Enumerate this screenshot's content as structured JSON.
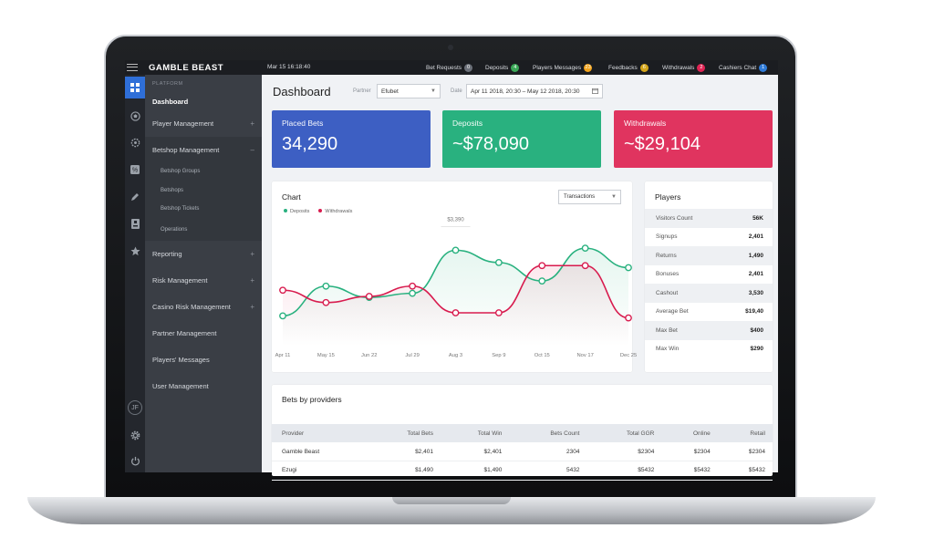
{
  "app": {
    "logo": "GAMBLE BEAST"
  },
  "topbar": {
    "time": "Mar 15 16:18:40",
    "items": [
      {
        "label": "Bet Requests",
        "count": "0",
        "color": "#6b7079"
      },
      {
        "label": "Deposits",
        "count": "4",
        "color": "#3aa757"
      },
      {
        "label": "Players Messages",
        "count": "23",
        "color": "#f2a31b"
      },
      {
        "label": "Feedbacks",
        "count": "6",
        "color": "#d4a51a"
      },
      {
        "label": "Withdrawals",
        "count": "2",
        "color": "#e02454"
      },
      {
        "label": "Cashiers Chat",
        "count": "1",
        "color": "#2f7bd8"
      }
    ]
  },
  "rail": {
    "icons": [
      "dashboard-icon",
      "soccer-ball-icon",
      "settings-cog-icon",
      "percent-icon",
      "pencil-icon",
      "id-card-icon",
      "star-icon"
    ],
    "avatar": "JF",
    "bottom_icons": [
      "gear-icon",
      "power-icon"
    ]
  },
  "sidebar": {
    "section": "PLATFORM",
    "active": "Dashboard",
    "items": [
      {
        "label": "Player Management",
        "plus": "+"
      },
      {
        "label": "Betshop Management",
        "plus": "–"
      },
      {
        "label": "Reporting",
        "plus": "+"
      },
      {
        "label": "Risk Management",
        "plus": "+"
      },
      {
        "label": "Casino Risk Management",
        "plus": "+"
      },
      {
        "label": "Partner Management",
        "plus": ""
      },
      {
        "label": "Players' Messages",
        "plus": ""
      },
      {
        "label": "User Management",
        "plus": ""
      }
    ],
    "betshop_sub": [
      "Betshop Groups",
      "Betshops",
      "Betshop Tickets",
      "Operations"
    ]
  },
  "header": {
    "title": "Dashboard",
    "partner_label": "Partner",
    "partner_value": "Efubet",
    "date_label": "Date",
    "date_value": "Apr 11 2018, 20:30 – May 12 2018, 20:30"
  },
  "kpis": [
    {
      "label": "Placed Bets",
      "value": "34,290",
      "color": "#3d5fc3"
    },
    {
      "label": "Deposits",
      "value": "~$78,090",
      "color": "#29b17f"
    },
    {
      "label": "Withdrawals",
      "value": "~$29,104",
      "color": "#e0345f"
    }
  ],
  "chart_card": {
    "title": "Chart",
    "select": "Transactions",
    "tooltip": "$3,390"
  },
  "chart_data": {
    "type": "line",
    "title": "Chart",
    "categories": [
      "Apr 11",
      "May 15",
      "Jun 22",
      "Jul 29",
      "Aug 3",
      "Sep 9",
      "Oct 15",
      "Nov 17",
      "Dec 25"
    ],
    "series": [
      {
        "name": "Deposits",
        "color": "#29b17f",
        "values": [
          29,
          58,
          47,
          51,
          93,
          81,
          63,
          95,
          76
        ]
      },
      {
        "name": "Withdrawals",
        "color": "#d81b4e",
        "values": [
          54,
          42,
          48,
          58,
          32,
          32,
          78,
          78,
          27
        ]
      }
    ],
    "ylim": [
      0,
      120
    ],
    "grid": false
  },
  "players": {
    "title": "Players",
    "rows": [
      {
        "label": "Visitors Count",
        "value": "56K"
      },
      {
        "label": "Signups",
        "value": "2,401"
      },
      {
        "label": "Returns",
        "value": "1,490"
      },
      {
        "label": "Bonuses",
        "value": "2,401"
      },
      {
        "label": "Cashout",
        "value": "3,530"
      },
      {
        "label": "Average Bet",
        "value": "$19,40"
      },
      {
        "label": "Max Bet",
        "value": "$400"
      },
      {
        "label": "Max Win",
        "value": "$290"
      }
    ]
  },
  "providers": {
    "title": "Bets by providers",
    "columns": [
      "Provider",
      "Total Bets",
      "Total Win",
      "Bets Count",
      "Total GGR",
      "Online",
      "Retail"
    ],
    "rows": [
      [
        "Gamble Beast",
        "$2,401",
        "$2,401",
        "2304",
        "$2304",
        "$2304",
        "$2304"
      ],
      [
        "Ezugi",
        "$1,490",
        "$1,490",
        "5432",
        "$5432",
        "$5432",
        "$5432"
      ]
    ]
  }
}
